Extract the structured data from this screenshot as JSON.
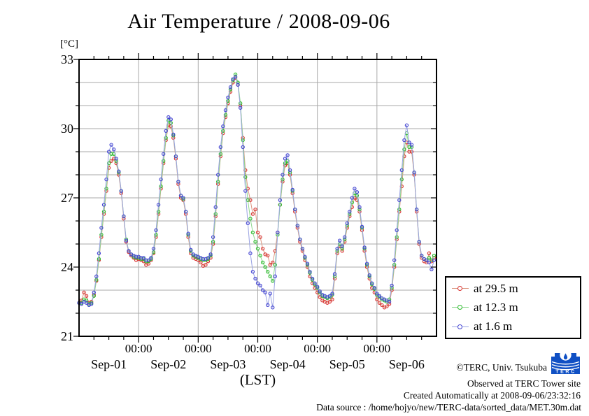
{
  "title": "Air Temperature / 2008-09-06",
  "axes": {
    "y_unit_label": "[°C]",
    "y_major_ticks": [
      33,
      30,
      27,
      24,
      21
    ],
    "y_min": 21,
    "y_max": 33,
    "y_minor_step": 1,
    "x_span_hours": 144,
    "x_minor_step_hours": 6,
    "x_major_step_hours": 24,
    "x_midnight_labels": [
      "00:00",
      "00:00",
      "00:00",
      "00:00",
      "00:00"
    ],
    "x_day_labels": [
      "Sep-01",
      "Sep-02",
      "Sep-03",
      "Sep-04",
      "Sep-05",
      "Sep-06"
    ],
    "x_axis_label": "(LST)"
  },
  "legend": {
    "entries": [
      {
        "label": "at 29.5 m",
        "marker_color": "#d93333",
        "line_color": "#dc9680"
      },
      {
        "label": "at 12.3 m",
        "marker_color": "#2cba2c",
        "line_color": "#8fd88f"
      },
      {
        "label": "at 1.6 m",
        "marker_color": "#4343d2",
        "line_color": "#99a2e2"
      }
    ]
  },
  "footer": {
    "copyright": "©TERC, Univ. Tsukuba",
    "observed": "Observed at TERC Tower site",
    "created": "Created Automatically at 2008-09-06/23:32:16",
    "data_source": "Data source : /home/hojyo/new/TERC-data/sorted_data/MET.30m.dat",
    "logo_text": "TERC",
    "logo_color": "#1050c4"
  },
  "chart_data": {
    "type": "line",
    "title": "Air Temperature / 2008-09-06",
    "xlabel": "(LST)",
    "ylabel": "[°C]",
    "ylim": [
      21,
      33
    ],
    "xlim_hours": [
      0,
      144
    ],
    "x_unit": "hours since 2008-09-01 00:00 LST",
    "x_start_hour": 0,
    "x_step_hours": 1,
    "grid": true,
    "legend_position": "outside-right-bottom",
    "series": [
      {
        "name": "at 29.5 m",
        "height_m": 29.5,
        "color": "#d93333",
        "line_color": "#dc9680",
        "values": [
          22.45,
          22.55,
          22.9,
          22.75,
          22.45,
          22.5,
          22.8,
          23.4,
          24.3,
          25.3,
          26.3,
          27.3,
          28.3,
          28.6,
          28.7,
          28.5,
          28.0,
          27.2,
          26.1,
          25.1,
          24.65,
          24.5,
          24.4,
          24.3,
          24.35,
          24.3,
          24.25,
          24.1,
          24.15,
          24.3,
          24.6,
          25.3,
          26.3,
          27.4,
          28.5,
          29.5,
          30.15,
          30.1,
          29.6,
          28.7,
          27.6,
          27.0,
          26.9,
          26.3,
          25.3,
          24.6,
          24.4,
          24.35,
          24.3,
          24.2,
          24.05,
          24.1,
          24.25,
          24.4,
          25.0,
          26.2,
          27.6,
          28.8,
          29.8,
          30.5,
          31.1,
          31.6,
          32.0,
          32.2,
          31.9,
          31.0,
          29.6,
          28.2,
          27.4,
          26.9,
          26.3,
          26.5,
          25.5,
          25.3,
          24.8,
          24.55,
          24.5,
          24.1,
          24.2,
          24.7,
          25.5,
          26.7,
          27.7,
          28.4,
          28.5,
          28.0,
          27.2,
          26.4,
          25.7,
          25.1,
          24.7,
          24.3,
          24.0,
          23.6,
          23.3,
          23.1,
          22.9,
          22.7,
          22.55,
          22.5,
          22.45,
          22.5,
          22.6,
          23.5,
          24.6,
          24.9,
          24.7,
          25.1,
          25.7,
          26.2,
          26.6,
          27.0,
          26.9,
          26.4,
          25.6,
          24.7,
          24.0,
          23.5,
          23.1,
          22.9,
          22.6,
          22.45,
          22.35,
          22.25,
          22.3,
          22.4,
          23.0,
          24.0,
          25.2,
          26.4,
          27.5,
          28.8,
          29.4,
          29.0,
          29.0,
          28.0,
          26.4,
          25.0,
          24.4,
          24.25,
          24.2,
          24.6,
          24.25,
          24.4
        ]
      },
      {
        "name": "at 12.3 m",
        "height_m": 12.3,
        "color": "#2cba2c",
        "line_color": "#8fd88f",
        "values": [
          22.45,
          22.45,
          22.6,
          22.55,
          22.4,
          22.45,
          22.75,
          23.45,
          24.35,
          25.4,
          26.4,
          27.4,
          28.5,
          28.9,
          28.9,
          28.6,
          28.1,
          27.3,
          26.2,
          25.2,
          24.7,
          24.55,
          24.45,
          24.4,
          24.4,
          24.35,
          24.35,
          24.25,
          24.25,
          24.35,
          24.65,
          25.4,
          26.4,
          27.5,
          28.6,
          29.6,
          30.35,
          30.25,
          29.7,
          28.8,
          27.7,
          27.1,
          26.95,
          26.4,
          25.4,
          24.7,
          24.5,
          24.45,
          24.4,
          24.35,
          24.3,
          24.3,
          24.35,
          24.5,
          25.1,
          26.3,
          27.7,
          28.9,
          29.9,
          30.6,
          31.2,
          31.7,
          32.1,
          32.35,
          32.0,
          31.1,
          29.5,
          27.9,
          26.9,
          26.1,
          25.5,
          25.1,
          24.8,
          24.5,
          24.2,
          24.0,
          23.8,
          23.6,
          23.4,
          24.1,
          25.4,
          26.7,
          27.8,
          28.5,
          28.6,
          28.1,
          27.3,
          26.5,
          25.8,
          25.2,
          24.8,
          24.4,
          24.1,
          23.75,
          23.45,
          23.25,
          23.1,
          22.9,
          22.75,
          22.7,
          22.65,
          22.7,
          22.8,
          23.6,
          24.7,
          25.0,
          24.8,
          25.2,
          25.8,
          26.3,
          26.8,
          27.2,
          27.1,
          26.5,
          25.7,
          24.8,
          24.1,
          23.6,
          23.25,
          23.05,
          22.8,
          22.7,
          22.6,
          22.55,
          22.5,
          22.6,
          23.1,
          24.1,
          25.3,
          26.5,
          27.8,
          29.1,
          29.8,
          29.2,
          29.2,
          28.1,
          26.5,
          25.1,
          24.5,
          24.35,
          24.3,
          24.4,
          24.3,
          24.5
        ]
      },
      {
        "name": "at 1.6 m",
        "height_m": 1.6,
        "color": "#4343d2",
        "line_color": "#99a2e2",
        "values": [
          22.45,
          22.4,
          22.5,
          22.45,
          22.35,
          22.4,
          22.9,
          23.6,
          24.6,
          25.7,
          26.7,
          27.8,
          29.0,
          29.3,
          29.1,
          28.7,
          28.15,
          27.3,
          26.2,
          25.15,
          24.7,
          24.55,
          24.5,
          24.45,
          24.45,
          24.4,
          24.4,
          24.3,
          24.3,
          24.4,
          24.8,
          25.6,
          26.7,
          27.8,
          28.9,
          29.9,
          30.5,
          30.4,
          29.75,
          28.8,
          27.7,
          27.1,
          27.0,
          26.4,
          25.45,
          24.75,
          24.55,
          24.5,
          24.45,
          24.4,
          24.35,
          24.35,
          24.4,
          24.55,
          25.3,
          26.6,
          28.0,
          29.2,
          30.1,
          30.8,
          31.35,
          31.8,
          32.15,
          32.25,
          31.9,
          30.9,
          29.2,
          27.3,
          25.9,
          24.6,
          23.8,
          23.5,
          23.3,
          23.2,
          23.0,
          22.9,
          22.35,
          22.85,
          22.25,
          23.6,
          25.5,
          26.9,
          28.0,
          28.7,
          28.85,
          28.2,
          27.35,
          26.5,
          25.8,
          25.2,
          24.8,
          24.45,
          24.15,
          23.8,
          23.5,
          23.3,
          23.15,
          22.95,
          22.8,
          22.75,
          22.7,
          22.75,
          22.85,
          23.7,
          24.8,
          25.15,
          24.9,
          25.3,
          25.9,
          26.4,
          27.0,
          27.4,
          27.25,
          26.6,
          25.75,
          24.85,
          24.15,
          23.65,
          23.3,
          23.1,
          22.85,
          22.75,
          22.65,
          22.6,
          22.55,
          22.5,
          23.2,
          24.3,
          25.6,
          26.9,
          28.2,
          29.5,
          30.15,
          29.4,
          29.3,
          28.1,
          26.5,
          25.1,
          24.5,
          24.35,
          24.3,
          24.2,
          23.9,
          24.3
        ]
      }
    ]
  }
}
